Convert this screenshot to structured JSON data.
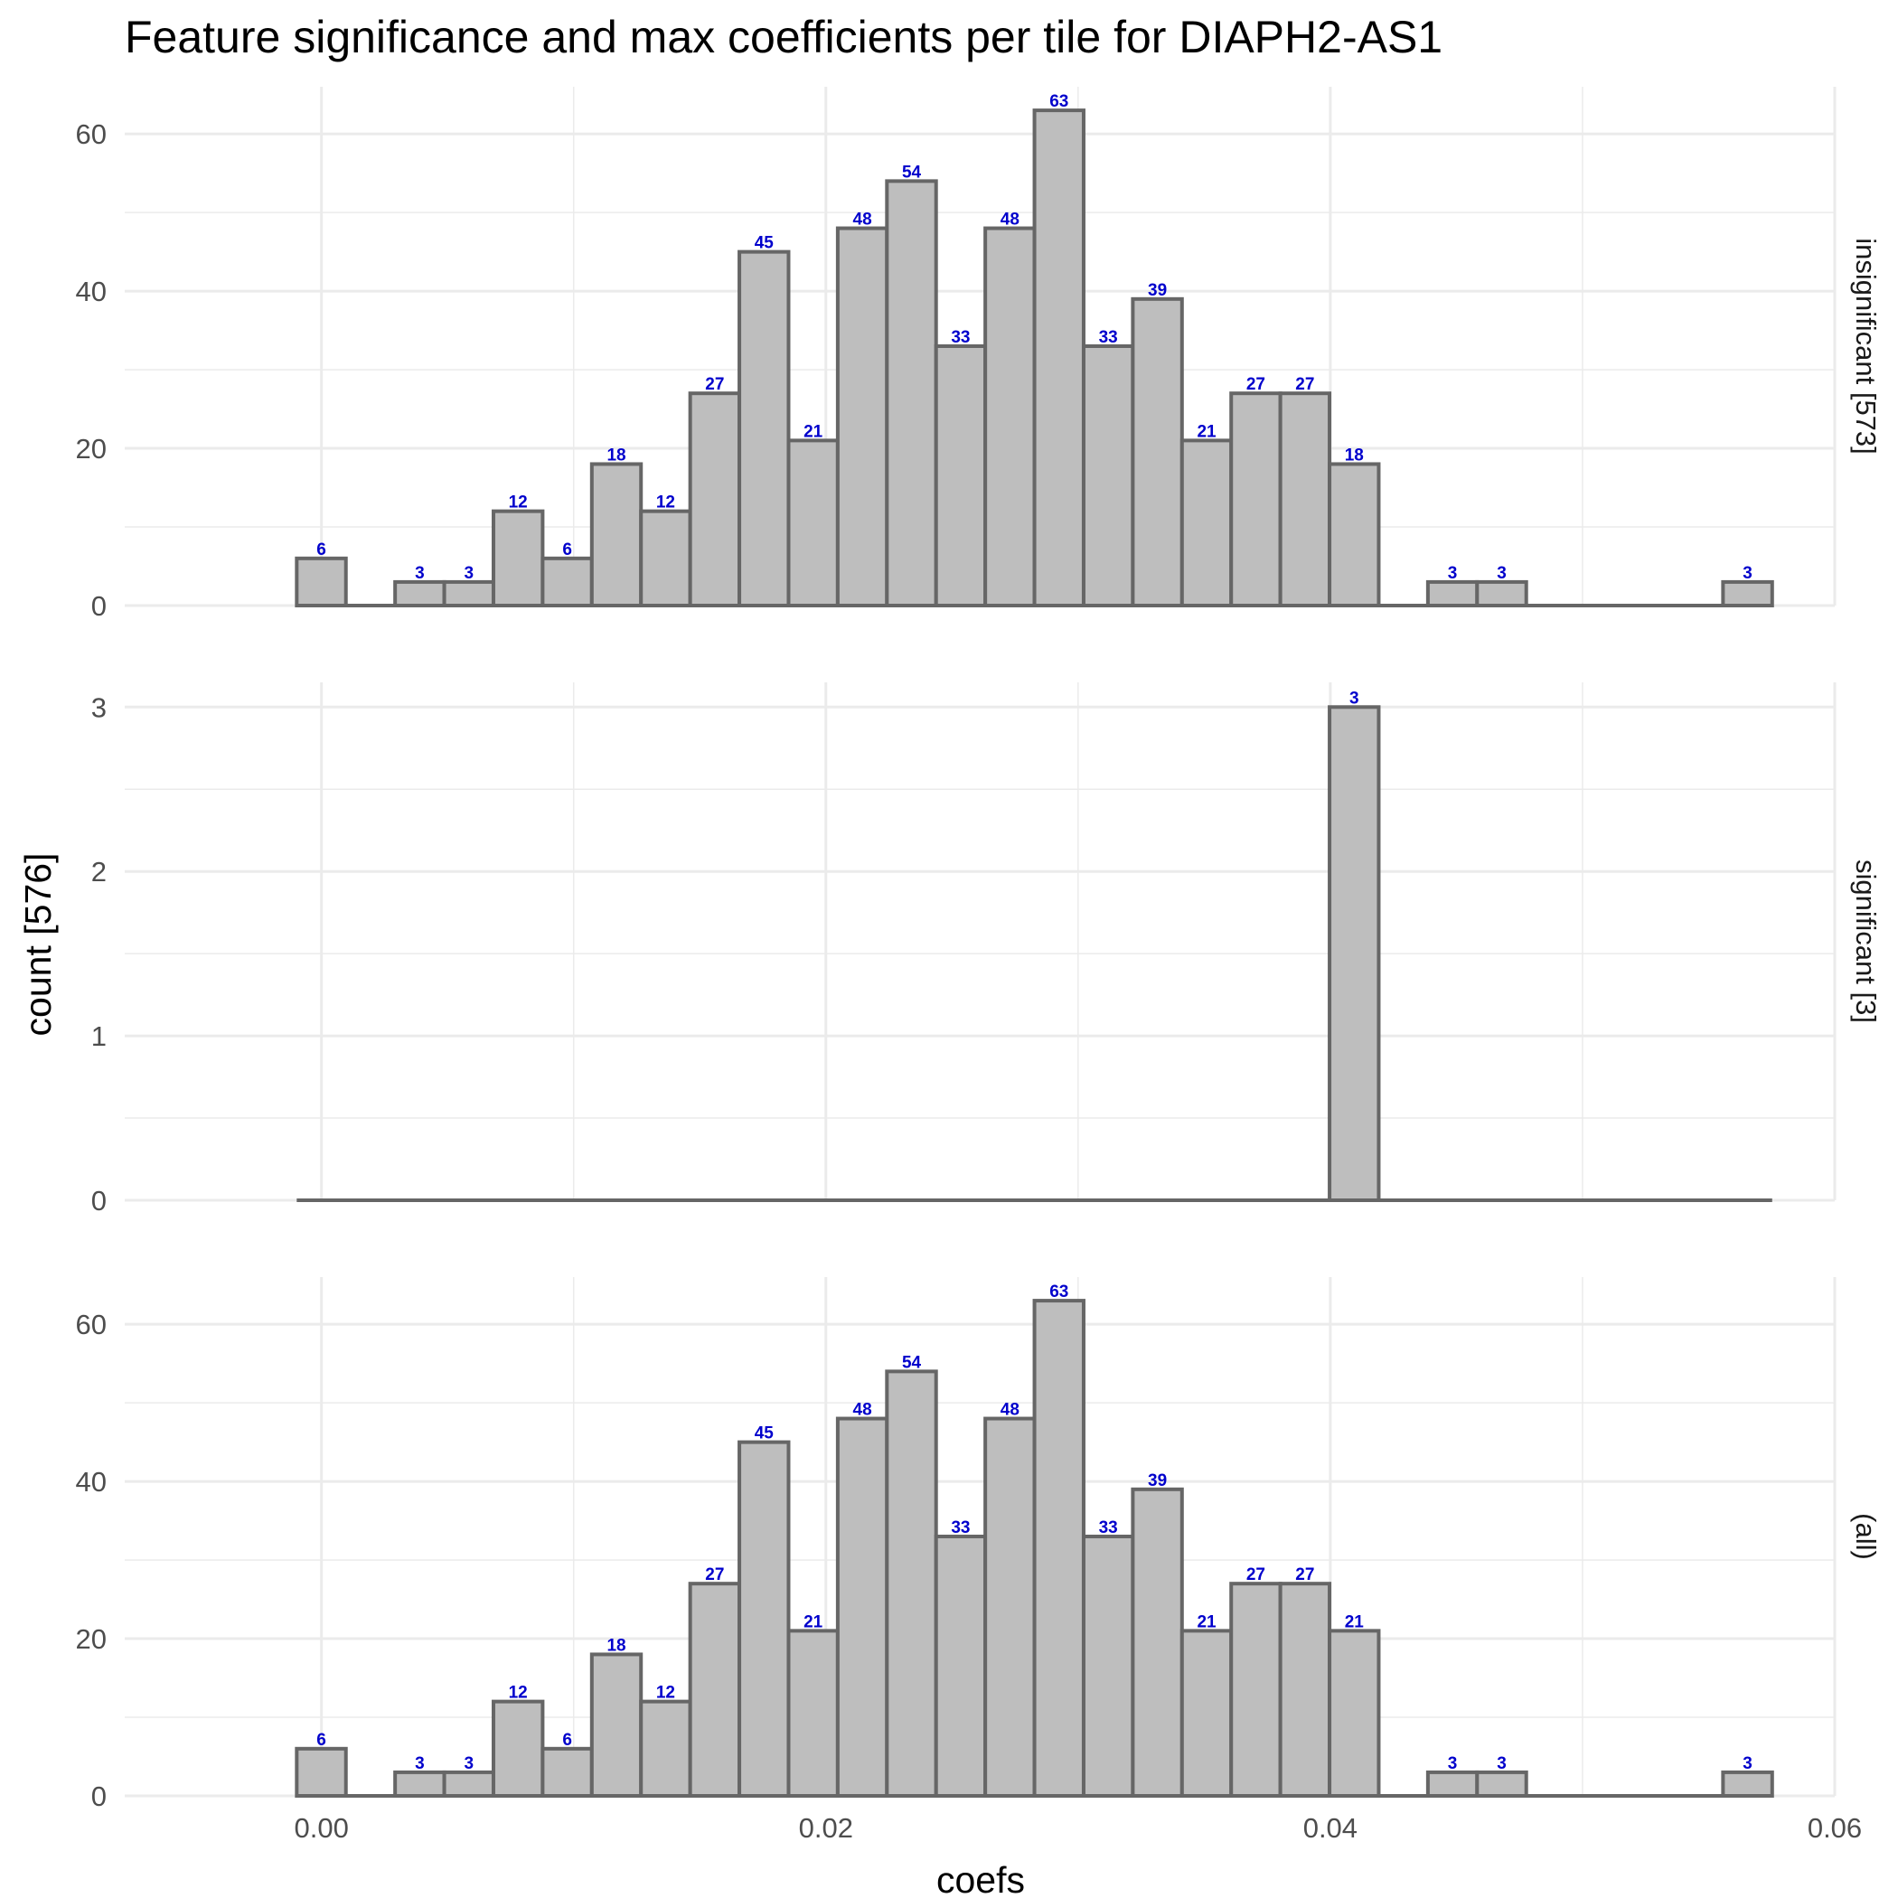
{
  "chart_data": {
    "type": "bar",
    "title": "Feature significance and max coefficients per tile for DIAPH2-AS1",
    "xlabel": "coefs",
    "ylabel": "count [576]",
    "x_ticks": [
      "0.00",
      "0.02",
      "0.04",
      "0.06"
    ],
    "x_range": [
      -0.0078,
      0.06
    ],
    "bin_start": -0.00098,
    "bin_width": 0.00195,
    "n_bins": 30,
    "grid": true,
    "panels": [
      {
        "name": "insignificant [573]",
        "ylim": [
          0,
          66
        ],
        "y_ticks": [
          0,
          20,
          40,
          60
        ],
        "values": [
          6,
          0,
          3,
          3,
          12,
          6,
          18,
          12,
          27,
          45,
          21,
          48,
          54,
          33,
          48,
          63,
          33,
          39,
          21,
          27,
          27,
          18,
          0,
          3,
          3,
          0,
          0,
          0,
          0,
          3
        ]
      },
      {
        "name": "significant [3]",
        "ylim": [
          0,
          3.15
        ],
        "y_ticks": [
          0,
          1,
          2,
          3
        ],
        "values": [
          0,
          0,
          0,
          0,
          0,
          0,
          0,
          0,
          0,
          0,
          0,
          0,
          0,
          0,
          0,
          0,
          0,
          0,
          0,
          0,
          0,
          3,
          0,
          0,
          0,
          0,
          0,
          0,
          0,
          0
        ]
      },
      {
        "name": "(all)",
        "ylim": [
          0,
          66
        ],
        "y_ticks": [
          0,
          20,
          40,
          60
        ],
        "values": [
          6,
          0,
          3,
          3,
          12,
          6,
          18,
          12,
          27,
          45,
          21,
          48,
          54,
          33,
          48,
          63,
          33,
          39,
          21,
          27,
          27,
          21,
          0,
          3,
          3,
          0,
          0,
          0,
          0,
          3
        ]
      }
    ],
    "colors": {
      "bar_fill": "#bebebe",
      "bar_stroke": "#666666",
      "bar_label": "#0000cc"
    }
  }
}
